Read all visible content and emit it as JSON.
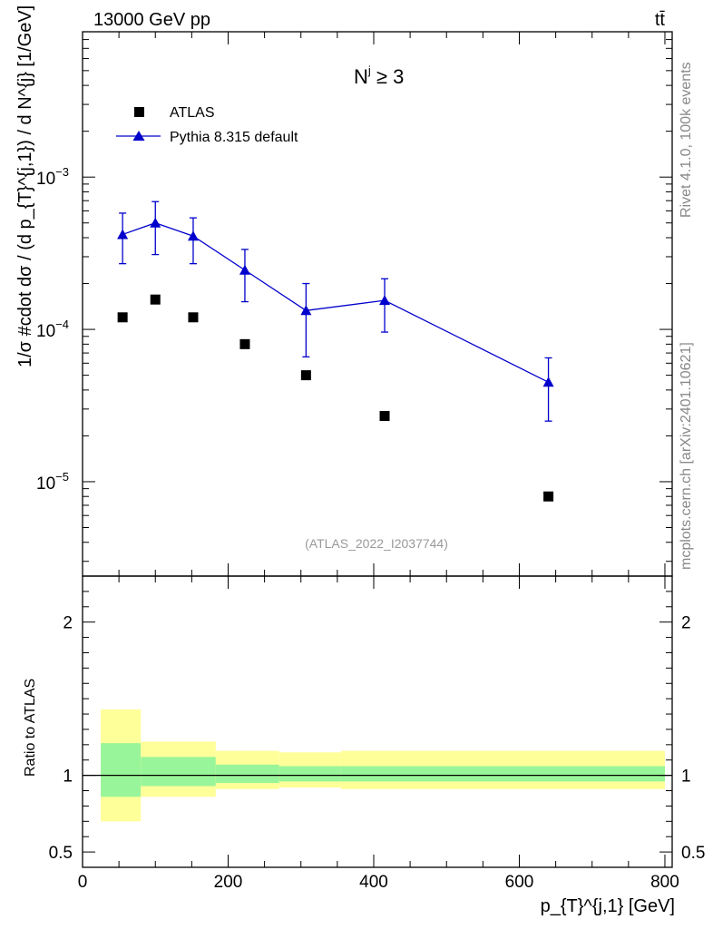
{
  "header": {
    "energy_label": "13000 GeV pp",
    "process_label": "tt̄"
  },
  "side_labels": {
    "rivet": "Rivet 4.1.0,  100k events",
    "source": "mcplots.cern.ch [arXiv:2401.10621]"
  },
  "chart_data": [
    {
      "type": "scatter",
      "title": "N^j ≥ 3",
      "title_main": "N",
      "title_sup": "j",
      "title_rest": " ≥ 3",
      "analysis_id": "(ATLAS_2022_I2037744)",
      "ylabel": "1/σ #cdot dσ / (d p_{T}^{j,1}) / d N^{j} [1/GeV]",
      "xlabel": "p_{T}^{j,1} [GeV]",
      "yscale": "log",
      "xlim": [
        0,
        810
      ],
      "ylim": [
        2.4e-06,
        0.009
      ],
      "ytick_labels": [
        {
          "value": 1e-05,
          "base": "10",
          "exp": "−5"
        },
        {
          "value": 0.0001,
          "base": "10",
          "exp": "−4"
        },
        {
          "value": 0.001,
          "base": "10",
          "exp": "−3"
        }
      ],
      "legend": {
        "position": "top-left",
        "entries": [
          {
            "name": "ATLAS",
            "marker": "square",
            "color": "#000000"
          },
          {
            "name": "Pythia 8.315 default",
            "marker": "triangle",
            "color": "#0000cc"
          }
        ]
      },
      "series": [
        {
          "name": "ATLAS",
          "x": [
            55,
            100,
            152,
            223,
            307,
            415,
            640
          ],
          "y": [
            0.00012,
            0.000157,
            0.00012,
            8e-05,
            5e-05,
            2.7e-05,
            8e-06
          ]
        },
        {
          "name": "Pythia 8.315 default",
          "x": [
            55,
            100,
            152,
            223,
            307,
            415,
            640
          ],
          "y": [
            0.00042,
            0.0005,
            0.00041,
            0.000245,
            0.000133,
            0.000155,
            4.5e-05
          ],
          "err_low": [
            0.00027,
            0.00031,
            0.00027,
            0.000152,
            6.6e-05,
            9.6e-05,
            2.5e-05
          ],
          "err_high": [
            0.00058,
            0.00069,
            0.00054,
            0.000335,
            0.0002,
            0.000215,
            6.5e-05
          ]
        }
      ]
    },
    {
      "type": "bar",
      "ylabel": "Ratio to ATLAS",
      "xlabel": "p_{T}^{j,1} [GeV]",
      "xlim": [
        0,
        810
      ],
      "ylim": [
        0.4,
        2.3
      ],
      "xtick_labels": [
        "0",
        "200",
        "400",
        "600",
        "800"
      ],
      "ytick_labels": [
        "0.5",
        "1",
        "2"
      ],
      "reference_line": 1,
      "bins": [
        {
          "x_low": 25,
          "x_high": 80,
          "yellow": [
            0.7,
            1.43
          ],
          "green": [
            0.86,
            1.21
          ]
        },
        {
          "x_low": 80,
          "x_high": 183,
          "yellow": [
            0.86,
            1.22
          ],
          "green": [
            0.93,
            1.12
          ]
        },
        {
          "x_low": 183,
          "x_high": 270,
          "yellow": [
            0.91,
            1.16
          ],
          "green": [
            0.95,
            1.07
          ]
        },
        {
          "x_low": 270,
          "x_high": 355,
          "yellow": [
            0.92,
            1.15
          ],
          "green": [
            0.96,
            1.06
          ]
        },
        {
          "x_low": 355,
          "x_high": 800,
          "yellow": [
            0.91,
            1.16
          ],
          "green": [
            0.96,
            1.06
          ]
        }
      ]
    }
  ]
}
